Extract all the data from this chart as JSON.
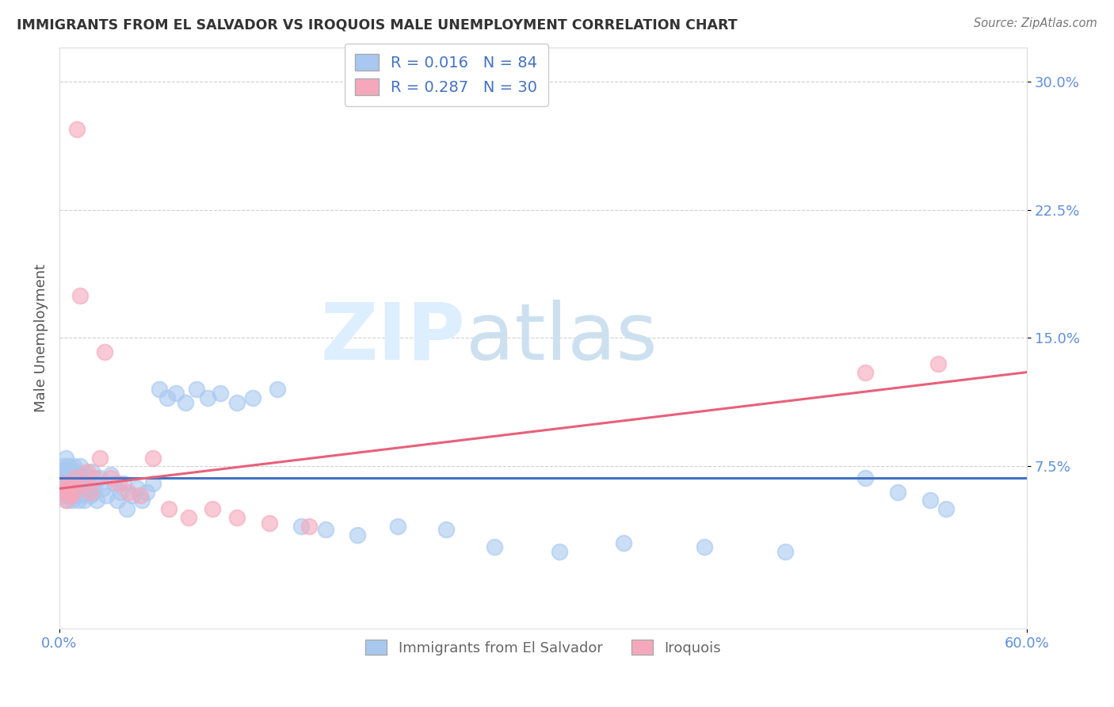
{
  "title": "IMMIGRANTS FROM EL SALVADOR VS IROQUOIS MALE UNEMPLOYMENT CORRELATION CHART",
  "source": "Source: ZipAtlas.com",
  "ylabel": "Male Unemployment",
  "xlim": [
    0.0,
    0.6
  ],
  "ylim": [
    -0.02,
    0.32
  ],
  "blue_color": "#a8c8f0",
  "pink_color": "#f5a8bc",
  "blue_line_color": "#4472c4",
  "pink_line_color": "#e8607a",
  "axis_tick_color": "#6090d8",
  "legend_R1": "0.016",
  "legend_N1": "84",
  "legend_R2": "0.287",
  "legend_N2": "30",
  "blue_scatter_x": [
    0.001,
    0.002,
    0.002,
    0.003,
    0.003,
    0.003,
    0.004,
    0.004,
    0.004,
    0.005,
    0.005,
    0.005,
    0.006,
    0.006,
    0.006,
    0.007,
    0.007,
    0.007,
    0.008,
    0.008,
    0.008,
    0.009,
    0.009,
    0.009,
    0.01,
    0.01,
    0.01,
    0.011,
    0.011,
    0.012,
    0.012,
    0.012,
    0.013,
    0.013,
    0.014,
    0.014,
    0.015,
    0.015,
    0.016,
    0.017,
    0.018,
    0.019,
    0.02,
    0.021,
    0.022,
    0.023,
    0.025,
    0.027,
    0.029,
    0.032,
    0.034,
    0.036,
    0.038,
    0.04,
    0.042,
    0.045,
    0.048,
    0.051,
    0.054,
    0.058,
    0.062,
    0.067,
    0.072,
    0.078,
    0.085,
    0.092,
    0.1,
    0.11,
    0.12,
    0.135,
    0.15,
    0.165,
    0.185,
    0.21,
    0.24,
    0.27,
    0.31,
    0.35,
    0.4,
    0.45,
    0.5,
    0.52,
    0.54,
    0.55
  ],
  "blue_scatter_y": [
    0.068,
    0.072,
    0.06,
    0.065,
    0.075,
    0.058,
    0.07,
    0.062,
    0.08,
    0.055,
    0.068,
    0.073,
    0.065,
    0.06,
    0.075,
    0.062,
    0.07,
    0.058,
    0.065,
    0.072,
    0.055,
    0.068,
    0.06,
    0.075,
    0.058,
    0.065,
    0.072,
    0.062,
    0.068,
    0.055,
    0.07,
    0.06,
    0.065,
    0.075,
    0.058,
    0.062,
    0.068,
    0.055,
    0.07,
    0.065,
    0.06,
    0.058,
    0.072,
    0.06,
    0.065,
    0.055,
    0.068,
    0.062,
    0.058,
    0.07,
    0.065,
    0.055,
    0.06,
    0.065,
    0.05,
    0.058,
    0.062,
    0.055,
    0.06,
    0.065,
    0.12,
    0.115,
    0.118,
    0.112,
    0.12,
    0.115,
    0.118,
    0.112,
    0.115,
    0.12,
    0.04,
    0.038,
    0.035,
    0.04,
    0.038,
    0.028,
    0.025,
    0.03,
    0.028,
    0.025,
    0.068,
    0.06,
    0.055,
    0.05
  ],
  "pink_scatter_x": [
    0.002,
    0.003,
    0.004,
    0.005,
    0.006,
    0.007,
    0.008,
    0.009,
    0.01,
    0.011,
    0.013,
    0.015,
    0.017,
    0.019,
    0.022,
    0.025,
    0.028,
    0.032,
    0.037,
    0.043,
    0.05,
    0.058,
    0.068,
    0.08,
    0.095,
    0.11,
    0.13,
    0.155,
    0.5,
    0.545
  ],
  "pink_scatter_y": [
    0.065,
    0.06,
    0.055,
    0.062,
    0.06,
    0.058,
    0.065,
    0.06,
    0.068,
    0.272,
    0.175,
    0.065,
    0.072,
    0.06,
    0.068,
    0.08,
    0.142,
    0.068,
    0.065,
    0.06,
    0.058,
    0.08,
    0.05,
    0.045,
    0.05,
    0.045,
    0.042,
    0.04,
    0.13,
    0.135
  ],
  "blue_line_y_start": 0.068,
  "blue_line_y_end": 0.068,
  "pink_line_y_start": 0.062,
  "pink_line_y_end": 0.13
}
